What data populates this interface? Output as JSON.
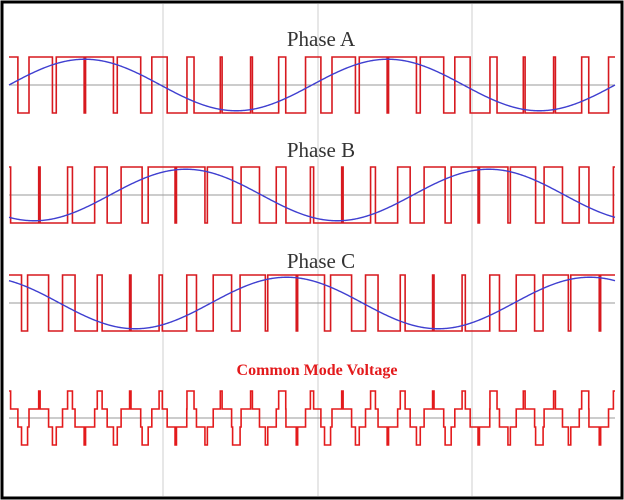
{
  "colors": {
    "pwm": "#d7191f",
    "sine": "#3f3fd0",
    "common_mode": "#e31a1c",
    "grid": "#cfcfcf",
    "axis": "#9a9a9a",
    "frame": "#000000"
  },
  "chart_data": {
    "type": "line",
    "grid": "vertical lines only",
    "legend": "none",
    "panels": [
      {
        "key": "A",
        "title": "Phase A",
        "sine_phase_deg": 0,
        "series": [
          {
            "kind": "sinusoidal PWM switching (±1)",
            "color": "#d7191f",
            "carrier_cycles": 20
          },
          {
            "kind": "sinusoidal reference",
            "color": "#3f3fd0",
            "cycles": 2,
            "amplitude": 0.92
          }
        ]
      },
      {
        "key": "B",
        "title": "Phase B",
        "sine_phase_deg": -120,
        "series": [
          {
            "kind": "sinusoidal PWM switching (±1)",
            "color": "#d7191f",
            "carrier_cycles": 20
          },
          {
            "kind": "sinusoidal reference",
            "color": "#3f3fd0",
            "cycles": 2,
            "amplitude": 0.92
          }
        ]
      },
      {
        "key": "C",
        "title": "Phase C",
        "sine_phase_deg": 120,
        "series": [
          {
            "kind": "sinusoidal PWM switching (±1)",
            "color": "#d7191f",
            "carrier_cycles": 20
          },
          {
            "kind": "sinusoidal reference",
            "color": "#3f3fd0",
            "cycles": 2,
            "amplitude": 0.92
          }
        ]
      },
      {
        "key": "CM",
        "title": "Common Mode Voltage",
        "series": [
          {
            "kind": "stepped waveform, (A+B+C)/3, levels ±1/3 and ±1",
            "color": "#e31a1c"
          }
        ]
      }
    ]
  }
}
